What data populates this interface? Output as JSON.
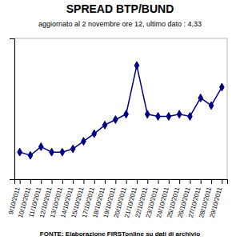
{
  "chart_data": {
    "type": "line",
    "title": "SPREAD BTP/BUND",
    "subtitle": "aggiornato al 2 novembre ore 12, ultimo dato : 4,33",
    "footer": "FONTE: Elaborazione FIRSTonline su dati di archivio",
    "categories": [
      "9/10/2011",
      "10/10/2011",
      "11/10/2011",
      "12/10/2011",
      "13/10/2011",
      "14/10/2011",
      "15/10/2011",
      "17/10/2011",
      "18/10/2011",
      "19/10/2011",
      "20/10/2011",
      "21/10/2011",
      "22/10/2011",
      "23/10/2011",
      "24/10/2011",
      "25/10/2011",
      "26/10/2011",
      "27/10/2011",
      "28/10/2011",
      "29/10/2011"
    ],
    "values": [
      3.55,
      3.52,
      3.6,
      3.55,
      3.55,
      3.58,
      3.65,
      3.72,
      3.8,
      3.85,
      3.9,
      4.35,
      3.9,
      3.88,
      3.88,
      3.9,
      3.88,
      4.05,
      3.98,
      4.15
    ],
    "color": "#000080",
    "marker": "diamond",
    "ylim": [
      3.3,
      4.6
    ],
    "yticks": [],
    "grid": false,
    "tick_labels": "x"
  }
}
